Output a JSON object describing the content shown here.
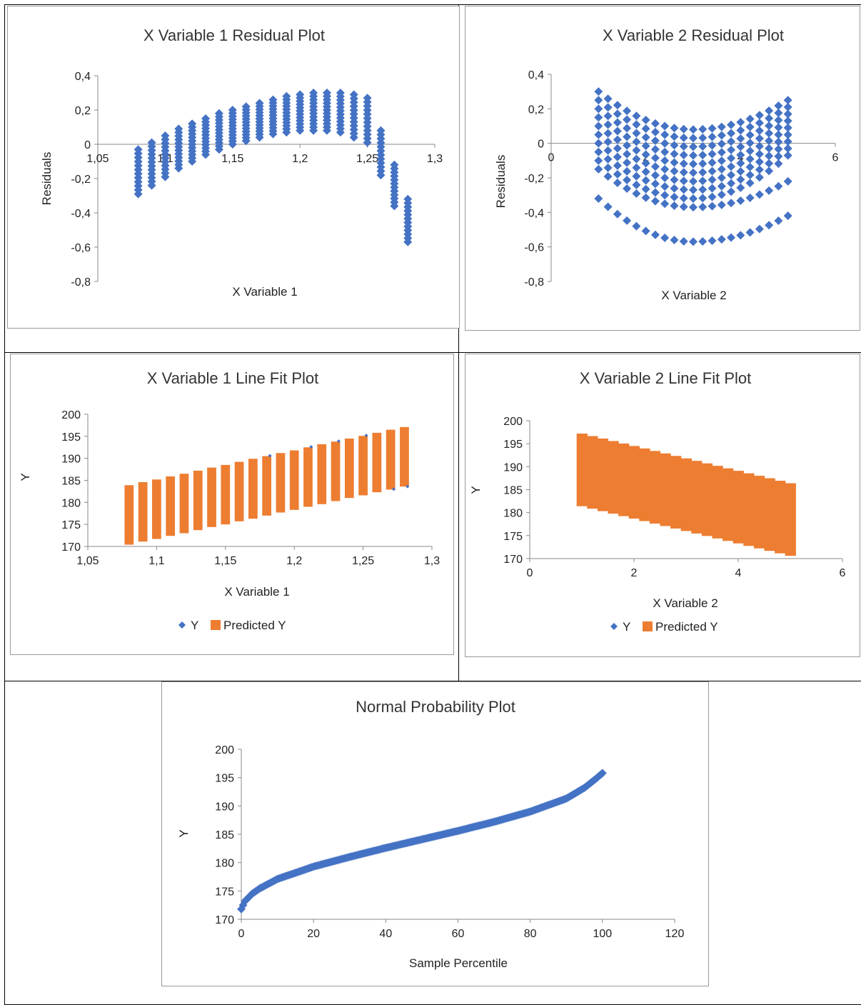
{
  "colors": {
    "y_marker": "#4472c4",
    "predicted": "#ed7d31",
    "axis": "#888888"
  },
  "chart_data": [
    {
      "id": "c1",
      "type": "scatter",
      "title": "X Variable 1  Residual Plot",
      "xlabel": "X Variable 1",
      "ylabel": "Residuals",
      "xlim": [
        1.05,
        1.3
      ],
      "ylim": [
        -0.8,
        0.4
      ],
      "x_ticks": [
        "1,05",
        "1,1",
        "1,15",
        "1,2",
        "1,25",
        "1,3"
      ],
      "x_tick_values": [
        1.05,
        1.1,
        1.15,
        1.2,
        1.25,
        1.3
      ],
      "y_ticks": [
        "0,4",
        "0,2",
        "0",
        "-0,2",
        "-0,4",
        "-0,6",
        "-0,8"
      ],
      "y_tick_values": [
        0.4,
        0.2,
        0,
        -0.2,
        -0.4,
        -0.6,
        -0.8
      ],
      "series": [
        {
          "name": "Residuals",
          "clusters": [
            {
              "x": 1.08,
              "ymin": -0.29,
              "ymax": -0.03
            },
            {
              "x": 1.09,
              "ymin": -0.24,
              "ymax": 0.01
            },
            {
              "x": 1.1,
              "ymin": -0.19,
              "ymax": 0.05
            },
            {
              "x": 1.11,
              "ymin": -0.14,
              "ymax": 0.09
            },
            {
              "x": 1.12,
              "ymin": -0.1,
              "ymax": 0.12
            },
            {
              "x": 1.13,
              "ymin": -0.06,
              "ymax": 0.15
            },
            {
              "x": 1.14,
              "ymin": -0.03,
              "ymax": 0.18
            },
            {
              "x": 1.15,
              "ymin": 0.0,
              "ymax": 0.2
            },
            {
              "x": 1.16,
              "ymin": 0.02,
              "ymax": 0.22
            },
            {
              "x": 1.17,
              "ymin": 0.04,
              "ymax": 0.24
            },
            {
              "x": 1.18,
              "ymin": 0.06,
              "ymax": 0.26
            },
            {
              "x": 1.19,
              "ymin": 0.07,
              "ymax": 0.28
            },
            {
              "x": 1.2,
              "ymin": 0.08,
              "ymax": 0.29
            },
            {
              "x": 1.21,
              "ymin": 0.08,
              "ymax": 0.3
            },
            {
              "x": 1.22,
              "ymin": 0.08,
              "ymax": 0.3
            },
            {
              "x": 1.23,
              "ymin": 0.07,
              "ymax": 0.3
            },
            {
              "x": 1.24,
              "ymin": 0.04,
              "ymax": 0.29
            },
            {
              "x": 1.25,
              "ymin": 0.01,
              "ymax": 0.27
            },
            {
              "x": 1.26,
              "ymin": -0.18,
              "ymax": 0.08
            },
            {
              "x": 1.27,
              "ymin": -0.36,
              "ymax": -0.12
            },
            {
              "x": 1.28,
              "ymin": -0.57,
              "ymax": -0.32
            }
          ]
        }
      ]
    },
    {
      "id": "c2",
      "type": "scatter",
      "title": "X Variable 2  Residual Plot",
      "xlabel": "X Variable 2",
      "ylabel": "Residuals",
      "xlim": [
        0,
        6
      ],
      "ylim": [
        -0.8,
        0.4
      ],
      "x_ticks": [
        "0",
        "2",
        "4",
        "6"
      ],
      "x_tick_values": [
        0,
        2,
        4,
        6
      ],
      "y_ticks": [
        "0,4",
        "0,2",
        "0",
        "-0,2",
        "-0,4",
        "-0,6",
        "-0,8"
      ],
      "y_tick_values": [
        0.4,
        0.2,
        0,
        -0.2,
        -0.4,
        -0.6,
        -0.8
      ],
      "series": [
        {
          "name": "Residuals",
          "x_min": 1.0,
          "x_max": 5.0,
          "vertex_x": 3.0,
          "curves": [
            {
              "y_left": 0.3,
              "y_vertex": 0.08,
              "y_right": 0.25
            },
            {
              "y_left": 0.25,
              "y_vertex": 0.03,
              "y_right": 0.21
            },
            {
              "y_left": 0.2,
              "y_vertex": -0.02,
              "y_right": 0.17
            },
            {
              "y_left": 0.15,
              "y_vertex": -0.07,
              "y_right": 0.13
            },
            {
              "y_left": 0.1,
              "y_vertex": -0.12,
              "y_right": 0.09
            },
            {
              "y_left": 0.05,
              "y_vertex": -0.17,
              "y_right": 0.05
            },
            {
              "y_left": 0.0,
              "y_vertex": -0.22,
              "y_right": 0.01
            },
            {
              "y_left": -0.05,
              "y_vertex": -0.27,
              "y_right": -0.03
            },
            {
              "y_left": -0.1,
              "y_vertex": -0.32,
              "y_right": -0.07
            },
            {
              "y_left": -0.15,
              "y_vertex": -0.37,
              "y_right": -0.22
            },
            {
              "y_left": -0.32,
              "y_vertex": -0.57,
              "y_right": -0.42
            }
          ]
        }
      ]
    },
    {
      "id": "c3",
      "type": "bar",
      "title": "X Variable 1 Line Fit  Plot",
      "xlabel": "X Variable 1",
      "ylabel": "Y",
      "xlim": [
        1.05,
        1.3
      ],
      "ylim": [
        170,
        200
      ],
      "x_ticks": [
        "1,05",
        "1,1",
        "1,15",
        "1,2",
        "1,25",
        "1,3"
      ],
      "x_tick_values": [
        1.05,
        1.1,
        1.15,
        1.2,
        1.25,
        1.3
      ],
      "y_ticks": [
        "200",
        "195",
        "190",
        "185",
        "180",
        "175",
        "170"
      ],
      "y_tick_values": [
        200,
        195,
        190,
        185,
        180,
        175,
        170
      ],
      "legend": [
        "Y",
        "Predicted Y"
      ],
      "legend_position": "bottom",
      "series": [
        {
          "name": "Predicted Y",
          "bars": [
            {
              "x": 1.08,
              "low": 170.4,
              "high": 183.9
            },
            {
              "x": 1.09,
              "low": 171.1,
              "high": 184.6
            },
            {
              "x": 1.1,
              "low": 171.7,
              "high": 185.2
            },
            {
              "x": 1.11,
              "low": 172.4,
              "high": 185.9
            },
            {
              "x": 1.12,
              "low": 173.0,
              "high": 186.5
            },
            {
              "x": 1.13,
              "low": 173.7,
              "high": 187.2
            },
            {
              "x": 1.14,
              "low": 174.4,
              "high": 187.9
            },
            {
              "x": 1.15,
              "low": 175.0,
              "high": 188.5
            },
            {
              "x": 1.16,
              "low": 175.7,
              "high": 189.2
            },
            {
              "x": 1.17,
              "low": 176.3,
              "high": 189.9
            },
            {
              "x": 1.18,
              "low": 177.0,
              "high": 190.5
            },
            {
              "x": 1.19,
              "low": 177.7,
              "high": 191.2
            },
            {
              "x": 1.2,
              "low": 178.3,
              "high": 191.8
            },
            {
              "x": 1.21,
              "low": 179.0,
              "high": 192.5
            },
            {
              "x": 1.22,
              "low": 179.6,
              "high": 193.2
            },
            {
              "x": 1.23,
              "low": 180.3,
              "high": 193.8
            },
            {
              "x": 1.24,
              "low": 181.0,
              "high": 194.5
            },
            {
              "x": 1.25,
              "low": 181.6,
              "high": 195.1
            },
            {
              "x": 1.26,
              "low": 182.3,
              "high": 195.8
            },
            {
              "x": 1.27,
              "low": 182.9,
              "high": 196.5
            },
            {
              "x": 1.28,
              "low": 183.6,
              "high": 197.1
            }
          ]
        },
        {
          "name": "Y",
          "points": [
            {
              "x": 1.18,
              "y": 190.6
            },
            {
              "x": 1.21,
              "y": 192.6
            },
            {
              "x": 1.23,
              "y": 193.9
            },
            {
              "x": 1.25,
              "y": 195.2
            },
            {
              "x": 1.27,
              "y": 183.0
            },
            {
              "x": 1.28,
              "y": 183.6
            }
          ]
        }
      ]
    },
    {
      "id": "c4",
      "type": "bar",
      "title": "X Variable 2 Line Fit  Plot",
      "xlabel": "X Variable 2",
      "ylabel": "Y",
      "xlim": [
        0,
        6
      ],
      "ylim": [
        170,
        200
      ],
      "x_ticks": [
        "0",
        "2",
        "4",
        "6"
      ],
      "x_tick_values": [
        0,
        2,
        4,
        6
      ],
      "y_ticks": [
        "200",
        "195",
        "190",
        "185",
        "180",
        "175",
        "170"
      ],
      "y_tick_values": [
        200,
        195,
        190,
        185,
        180,
        175,
        170
      ],
      "legend": [
        "Y",
        "Predicted Y"
      ],
      "legend_position": "bottom",
      "series": [
        {
          "name": "Predicted Y",
          "x_min": 0.9,
          "x_max": 5.1,
          "top_left": 197.2,
          "top_right": 186.4,
          "bottom_left": 181.4,
          "bottom_right": 170.6,
          "steps": 21
        }
      ]
    },
    {
      "id": "c5",
      "type": "scatter",
      "title": "Normal Probability Plot",
      "xlabel": "Sample Percentile",
      "ylabel": "Y",
      "xlim": [
        0,
        120
      ],
      "ylim": [
        170,
        200
      ],
      "x_ticks": [
        "0",
        "20",
        "40",
        "60",
        "80",
        "100",
        "120"
      ],
      "x_tick_values": [
        0,
        20,
        40,
        60,
        80,
        100,
        120
      ],
      "y_ticks": [
        "200",
        "195",
        "190",
        "185",
        "180",
        "175",
        "170"
      ],
      "y_tick_values": [
        200,
        195,
        190,
        185,
        180,
        175,
        170
      ],
      "series": [
        {
          "name": "Y",
          "curve": [
            [
              0,
              171.8
            ],
            [
              1,
              173.2
            ],
            [
              3,
              174.5
            ],
            [
              5,
              175.4
            ],
            [
              10,
              177.1
            ],
            [
              20,
              179.3
            ],
            [
              30,
              181.0
            ],
            [
              40,
              182.6
            ],
            [
              50,
              184.1
            ],
            [
              60,
              185.6
            ],
            [
              70,
              187.2
            ],
            [
              80,
              189.0
            ],
            [
              90,
              191.3
            ],
            [
              95,
              193.2
            ],
            [
              98,
              194.7
            ],
            [
              100,
              195.8
            ]
          ]
        }
      ]
    }
  ]
}
